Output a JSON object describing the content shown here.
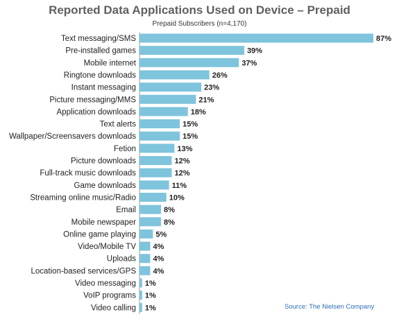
{
  "chart_data": {
    "type": "bar",
    "orientation": "horizontal",
    "title": "Reported Data Applications Used on Device – Prepaid",
    "subtitle": "Prepaid Subscribers (n=4,170)",
    "source": "Source: The Nielsen Company",
    "bar_color": "#7ec4dc",
    "value_suffix": "%",
    "grid": false,
    "legend": "none",
    "xlim": [
      0,
      87
    ],
    "categories": [
      "Text messaging/SMS",
      "Pre-installed games",
      "Mobile internet",
      "Ringtone downloads",
      "Instant messaging",
      "Picture messaging/MMS",
      "Application downloads",
      "Text alerts",
      "Wallpaper/Screensavers downloads",
      "Fetion",
      "Picture downloads",
      "Full-track music downloads",
      "Game downloads",
      "Streaming online music/Radio",
      "Email",
      "Mobile newspaper",
      "Online game playing",
      "Video/Mobile TV",
      "Uploads",
      "Location-based services/GPS",
      "Video messaging",
      "VoIP programs",
      "Video calling"
    ],
    "values": [
      87,
      39,
      37,
      26,
      23,
      21,
      18,
      15,
      15,
      13,
      12,
      12,
      11,
      10,
      8,
      8,
      5,
      4,
      4,
      4,
      1,
      1,
      1
    ]
  }
}
